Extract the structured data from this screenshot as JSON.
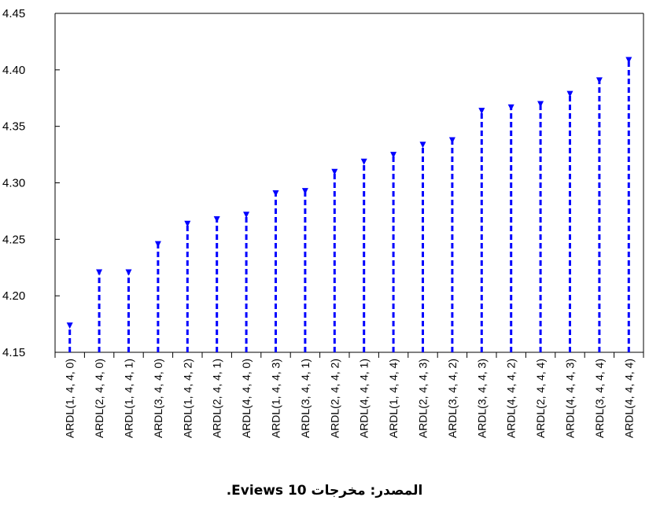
{
  "chart_data": {
    "type": "lollipop",
    "title": "",
    "xlabel": "",
    "ylabel": "",
    "ylim": [
      4.15,
      4.45
    ],
    "yticks": [
      "4.15",
      "4.20",
      "4.25",
      "4.30",
      "4.35",
      "4.40",
      "4.45"
    ],
    "ytick_values": [
      4.15,
      4.2,
      4.25,
      4.3,
      4.35,
      4.4,
      4.45
    ],
    "grid": false,
    "stem_color": "#0000ff",
    "stem_style": "dashed",
    "marker": "triangle-down",
    "categories": [
      "ARDL(1, 4, 4, 0)",
      "ARDL(2, 4, 4, 0)",
      "ARDL(1, 4, 4, 1)",
      "ARDL(3, 4, 4, 0)",
      "ARDL(1, 4, 4, 2)",
      "ARDL(2, 4, 4, 1)",
      "ARDL(4, 4, 4, 0)",
      "ARDL(1, 4, 4, 3)",
      "ARDL(3, 4, 4, 1)",
      "ARDL(2, 4, 4, 2)",
      "ARDL(4, 4, 4, 1)",
      "ARDL(1, 4, 4, 4)",
      "ARDL(2, 4, 4, 3)",
      "ARDL(3, 4, 4, 2)",
      "ARDL(3, 4, 4, 3)",
      "ARDL(4, 4, 4, 2)",
      "ARDL(2, 4, 4, 4)",
      "ARDL(4, 4, 4, 3)",
      "ARDL(3, 4, 4, 4)",
      "ARDL(4, 4, 4, 4)"
    ],
    "values": [
      4.175,
      4.222,
      4.222,
      4.247,
      4.265,
      4.269,
      4.273,
      4.292,
      4.294,
      4.311,
      4.32,
      4.326,
      4.335,
      4.339,
      4.365,
      4.368,
      4.371,
      4.38,
      4.392,
      4.41
    ]
  },
  "source_note": "المصدر: مخرجات Eviews 10."
}
